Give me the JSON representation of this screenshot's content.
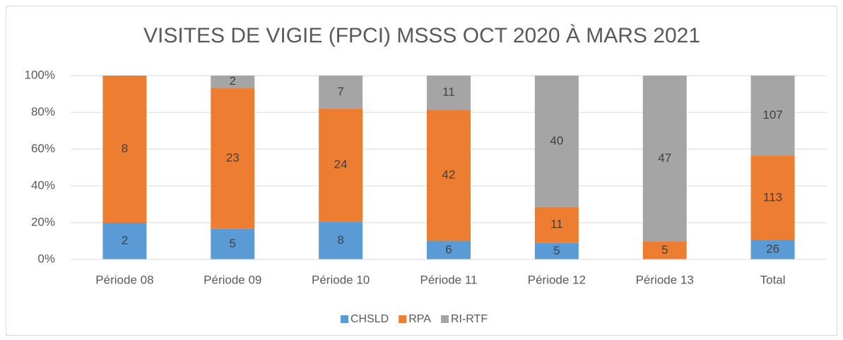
{
  "chart_data": {
    "type": "bar",
    "stacking": "percent",
    "title": "VISITES DE VIGIE (FPCI) MSSS OCT 2020 À MARS 2021",
    "categories": [
      "Période 08",
      "Période 09",
      "Période 10",
      "Période 11",
      "Période 12",
      "Période 13",
      "Total"
    ],
    "series": [
      {
        "name": "CHSLD",
        "color": "#5b9bd5",
        "values": [
          2,
          5,
          8,
          6,
          5,
          null,
          26
        ]
      },
      {
        "name": "RPA",
        "color": "#ed7d31",
        "values": [
          8,
          23,
          24,
          42,
          11,
          5,
          113
        ]
      },
      {
        "name": "RI-RTF",
        "color": "#a5a5a5",
        "values": [
          null,
          2,
          7,
          11,
          40,
          47,
          107
        ]
      }
    ],
    "ylim": [
      0,
      100
    ],
    "yticks": [
      {
        "value": 0,
        "label": "0%"
      },
      {
        "value": 20,
        "label": "20%"
      },
      {
        "value": 40,
        "label": "40%"
      },
      {
        "value": 60,
        "label": "60%"
      },
      {
        "value": 80,
        "label": "80%"
      },
      {
        "value": 100,
        "label": "100%"
      }
    ],
    "grid": true,
    "legend": "bottom"
  }
}
